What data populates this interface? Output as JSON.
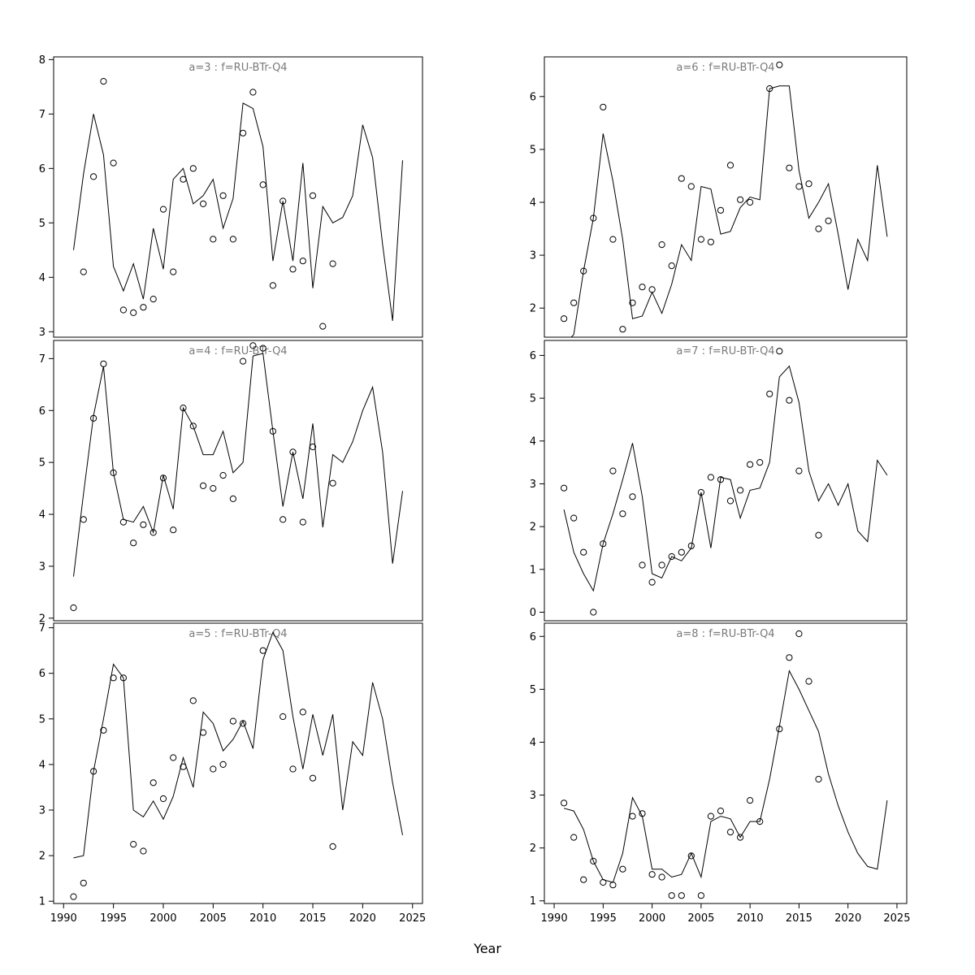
{
  "figure": {
    "xlabel": "Year",
    "x_ticks": [
      1990,
      1995,
      2000,
      2005,
      2010,
      2015,
      2020,
      2025
    ],
    "xlim": [
      1989,
      2026
    ],
    "colors": {
      "line": "#000000",
      "point": "#000000",
      "title": "#7a7a7a",
      "axis": "#000000",
      "background": "#ffffff"
    }
  },
  "chart_data": [
    {
      "id": "a3",
      "type": "line",
      "title": "a=3  :  f=RU-BTr-Q4",
      "ylim": [
        2.9,
        8.05
      ],
      "y_ticks": [
        3,
        4,
        5,
        6,
        7,
        8
      ],
      "series": [
        {
          "name": "fitted-line",
          "style": "line",
          "x": [
            1991,
            1992,
            1993,
            1994,
            1995,
            1996,
            1997,
            1998,
            1999,
            2000,
            2001,
            2002,
            2003,
            2004,
            2005,
            2006,
            2007,
            2008,
            2009,
            2010,
            2011,
            2012,
            2013,
            2014,
            2015,
            2016,
            2017,
            2018,
            2019,
            2020,
            2021,
            2022,
            2023,
            2024
          ],
          "y": [
            4.5,
            5.9,
            7.0,
            6.25,
            4.2,
            3.75,
            4.25,
            3.6,
            4.9,
            4.15,
            5.8,
            6.0,
            5.35,
            5.5,
            5.8,
            4.9,
            5.45,
            7.2,
            7.1,
            6.4,
            4.3,
            5.4,
            4.3,
            6.1,
            3.8,
            5.3,
            5.0,
            5.1,
            5.5,
            6.8,
            6.2,
            4.6,
            3.2,
            6.15
          ]
        },
        {
          "name": "observations",
          "style": "points",
          "x": [
            1992,
            1993,
            1994,
            1995,
            1996,
            1997,
            1998,
            1999,
            2000,
            2001,
            2002,
            2003,
            2004,
            2005,
            2006,
            2007,
            2008,
            2009,
            2010,
            2011,
            2012,
            2013,
            2014,
            2015,
            2016,
            2017
          ],
          "y": [
            4.1,
            5.85,
            7.6,
            6.1,
            3.4,
            3.35,
            3.45,
            3.6,
            5.25,
            4.1,
            5.8,
            6.0,
            5.35,
            4.7,
            5.5,
            4.7,
            6.65,
            7.4,
            5.7,
            3.85,
            5.4,
            4.15,
            4.3,
            5.5,
            3.1,
            4.25
          ]
        }
      ]
    },
    {
      "id": "a4",
      "type": "line",
      "title": "a=4  :  f=RU-BTr-Q4",
      "ylim": [
        1.95,
        7.35
      ],
      "y_ticks": [
        2,
        3,
        4,
        5,
        6,
        7
      ],
      "series": [
        {
          "name": "fitted-line",
          "style": "line",
          "x": [
            1991,
            1992,
            1993,
            1994,
            1995,
            1996,
            1997,
            1998,
            1999,
            2000,
            2001,
            2002,
            2003,
            2004,
            2005,
            2006,
            2007,
            2008,
            2009,
            2010,
            2011,
            2012,
            2013,
            2014,
            2015,
            2016,
            2017,
            2018,
            2019,
            2020,
            2021,
            2022,
            2023,
            2024
          ],
          "y": [
            2.8,
            4.4,
            5.9,
            6.85,
            4.8,
            3.9,
            3.85,
            4.15,
            3.65,
            4.75,
            4.1,
            6.05,
            5.7,
            5.15,
            5.15,
            5.6,
            4.8,
            5.0,
            7.05,
            7.1,
            5.6,
            4.15,
            5.2,
            4.3,
            5.75,
            3.75,
            5.15,
            5.0,
            5.4,
            6.0,
            6.45,
            5.2,
            3.05,
            4.45
          ]
        },
        {
          "name": "observations",
          "style": "points",
          "x": [
            1991,
            1992,
            1993,
            1994,
            1995,
            1996,
            1997,
            1998,
            1999,
            2000,
            2001,
            2002,
            2003,
            2004,
            2005,
            2006,
            2007,
            2008,
            2009,
            2010,
            2011,
            2012,
            2013,
            2014,
            2015,
            2017
          ],
          "y": [
            2.2,
            3.9,
            5.85,
            6.9,
            4.8,
            3.85,
            3.45,
            3.8,
            3.65,
            4.7,
            3.7,
            6.05,
            5.7,
            4.55,
            4.5,
            4.75,
            4.3,
            6.95,
            7.25,
            7.2,
            5.6,
            3.9,
            5.2,
            3.85,
            5.3,
            4.6
          ]
        }
      ]
    },
    {
      "id": "a5",
      "type": "line",
      "title": "a=5  :  f=RU-BTr-Q4",
      "ylim": [
        0.95,
        7.1
      ],
      "y_ticks": [
        1,
        2,
        3,
        4,
        5,
        6,
        7
      ],
      "series": [
        {
          "name": "fitted-line",
          "style": "line",
          "x": [
            1991,
            1992,
            1993,
            1994,
            1995,
            1996,
            1997,
            1998,
            1999,
            2000,
            2001,
            2002,
            2003,
            2004,
            2005,
            2006,
            2007,
            2008,
            2009,
            2010,
            2011,
            2012,
            2013,
            2014,
            2015,
            2016,
            2017,
            2018,
            2019,
            2020,
            2021,
            2022,
            2023,
            2024
          ],
          "y": [
            1.95,
            2.0,
            3.85,
            5.0,
            6.2,
            5.9,
            3.0,
            2.85,
            3.2,
            2.8,
            3.3,
            4.15,
            3.5,
            5.15,
            4.9,
            4.3,
            4.55,
            4.95,
            4.35,
            6.3,
            6.9,
            6.5,
            5.05,
            3.9,
            5.1,
            4.2,
            5.1,
            3.0,
            4.5,
            4.2,
            5.8,
            5.0,
            3.6,
            2.45
          ]
        },
        {
          "name": "observations",
          "style": "points",
          "x": [
            1991,
            1992,
            1993,
            1994,
            1995,
            1996,
            1997,
            1998,
            1999,
            2000,
            2001,
            2002,
            2003,
            2004,
            2005,
            2006,
            2007,
            2008,
            2010,
            2012,
            2013,
            2014,
            2015,
            2017
          ],
          "y": [
            1.1,
            1.4,
            3.85,
            4.75,
            5.9,
            5.9,
            2.25,
            2.1,
            3.6,
            3.25,
            4.15,
            3.95,
            5.4,
            4.7,
            3.9,
            4.0,
            4.95,
            4.9,
            6.5,
            5.05,
            3.9,
            5.15,
            3.7,
            2.2
          ]
        }
      ]
    },
    {
      "id": "a6",
      "type": "line",
      "title": "a=6  :  f=RU-BTr-Q4",
      "ylim": [
        1.45,
        6.75
      ],
      "y_ticks": [
        2,
        3,
        4,
        5,
        6
      ],
      "series": [
        {
          "name": "fitted-line",
          "style": "line",
          "x": [
            1991,
            1992,
            1993,
            1994,
            1995,
            1996,
            1997,
            1998,
            1999,
            2000,
            2001,
            2002,
            2003,
            2004,
            2005,
            2006,
            2007,
            2008,
            2009,
            2010,
            2011,
            2012,
            2013,
            2014,
            2015,
            2016,
            2017,
            2018,
            2019,
            2020,
            2021,
            2022,
            2023,
            2024
          ],
          "y": [
            1.3,
            1.5,
            2.7,
            3.7,
            5.3,
            4.4,
            3.3,
            1.8,
            1.85,
            2.3,
            1.9,
            2.45,
            3.2,
            2.9,
            4.3,
            4.25,
            3.4,
            3.45,
            3.9,
            4.1,
            4.05,
            6.15,
            6.2,
            6.2,
            4.6,
            3.7,
            4.0,
            4.35,
            3.4,
            2.35,
            3.3,
            2.9,
            4.7,
            3.35
          ]
        },
        {
          "name": "observations",
          "style": "points",
          "x": [
            1991,
            1992,
            1993,
            1994,
            1995,
            1996,
            1997,
            1998,
            1999,
            2000,
            2001,
            2002,
            2003,
            2004,
            2005,
            2006,
            2007,
            2008,
            2009,
            2010,
            2012,
            2013,
            2014,
            2015,
            2016,
            2017,
            2018
          ],
          "y": [
            1.8,
            2.1,
            2.7,
            3.7,
            5.8,
            3.3,
            1.6,
            2.1,
            2.4,
            2.35,
            3.2,
            2.8,
            4.45,
            4.3,
            3.3,
            3.25,
            3.85,
            4.7,
            4.05,
            4.0,
            6.15,
            6.6,
            4.65,
            4.3,
            4.35,
            3.5,
            3.65
          ]
        }
      ]
    },
    {
      "id": "a7",
      "type": "line",
      "title": "a=7  :  f=RU-BTr-Q4",
      "ylim": [
        -0.2,
        6.35
      ],
      "y_ticks": [
        0,
        1,
        2,
        3,
        4,
        5,
        6
      ],
      "series": [
        {
          "name": "fitted-line",
          "style": "line",
          "x": [
            1991,
            1992,
            1993,
            1994,
            1995,
            1996,
            1997,
            1998,
            1999,
            2000,
            2001,
            2002,
            2003,
            2004,
            2005,
            2006,
            2007,
            2008,
            2009,
            2010,
            2011,
            2012,
            2013,
            2014,
            2015,
            2016,
            2017,
            2018,
            2019,
            2020,
            2021,
            2022,
            2023,
            2024
          ],
          "y": [
            2.4,
            1.4,
            0.9,
            0.5,
            1.6,
            2.3,
            3.1,
            3.95,
            2.7,
            0.9,
            0.8,
            1.3,
            1.2,
            1.5,
            2.8,
            1.5,
            3.15,
            3.1,
            2.2,
            2.85,
            2.9,
            3.5,
            5.5,
            5.75,
            4.9,
            3.3,
            2.6,
            3.0,
            2.5,
            3.0,
            1.9,
            1.65,
            3.55,
            3.2
          ]
        },
        {
          "name": "observations",
          "style": "points",
          "x": [
            1991,
            1992,
            1993,
            1994,
            1995,
            1996,
            1997,
            1998,
            1999,
            2000,
            2001,
            2002,
            2003,
            2004,
            2005,
            2006,
            2007,
            2008,
            2009,
            2010,
            2011,
            2012,
            2013,
            2014,
            2015,
            2017
          ],
          "y": [
            2.9,
            2.2,
            1.4,
            0,
            1.6,
            3.3,
            2.3,
            2.7,
            1.1,
            0.7,
            1.1,
            1.3,
            1.4,
            1.55,
            2.8,
            3.15,
            3.1,
            2.6,
            2.85,
            3.45,
            3.5,
            5.1,
            6.1,
            4.95,
            3.3,
            1.8
          ]
        }
      ]
    },
    {
      "id": "a8",
      "type": "line",
      "title": "a=8  :  f=RU-BTr-Q4",
      "ylim": [
        0.95,
        6.25
      ],
      "y_ticks": [
        1,
        2,
        3,
        4,
        5,
        6
      ],
      "series": [
        {
          "name": "fitted-line",
          "style": "line",
          "x": [
            1991,
            1992,
            1993,
            1994,
            1995,
            1996,
            1997,
            1998,
            1999,
            2000,
            2001,
            2002,
            2003,
            2004,
            2005,
            2006,
            2007,
            2008,
            2009,
            2010,
            2011,
            2012,
            2013,
            2014,
            2015,
            2016,
            2017,
            2018,
            2019,
            2020,
            2021,
            2022,
            2023,
            2024
          ],
          "y": [
            2.75,
            2.7,
            2.35,
            1.75,
            1.4,
            1.35,
            1.9,
            2.95,
            2.6,
            1.6,
            1.6,
            1.45,
            1.5,
            1.9,
            1.45,
            2.5,
            2.6,
            2.55,
            2.2,
            2.5,
            2.5,
            3.3,
            4.3,
            5.35,
            5.0,
            4.6,
            4.2,
            3.4,
            2.8,
            2.3,
            1.9,
            1.65,
            1.6,
            2.9
          ]
        },
        {
          "name": "observations",
          "style": "points",
          "x": [
            1991,
            1992,
            1993,
            1994,
            1995,
            1996,
            1997,
            1998,
            1999,
            2000,
            2001,
            2002,
            2003,
            2004,
            2005,
            2006,
            2007,
            2008,
            2009,
            2010,
            2011,
            2013,
            2014,
            2015,
            2016,
            2017
          ],
          "y": [
            2.85,
            2.2,
            1.4,
            1.75,
            1.35,
            1.3,
            1.6,
            2.6,
            2.65,
            1.5,
            1.45,
            1.1,
            1.1,
            1.85,
            1.1,
            2.6,
            2.7,
            2.3,
            2.2,
            2.9,
            2.5,
            4.25,
            5.6,
            6.05,
            5.15,
            3.3
          ]
        }
      ]
    }
  ]
}
